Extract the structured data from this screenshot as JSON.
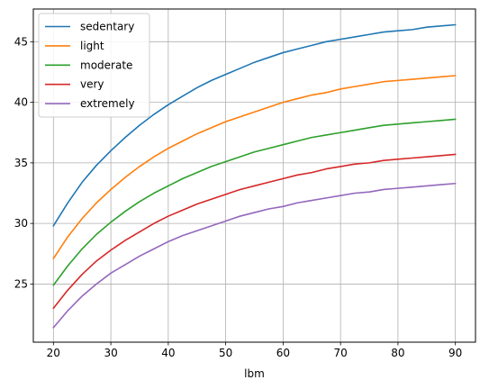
{
  "chart_data": {
    "type": "line",
    "title": "",
    "xlabel": "lbm",
    "ylabel": "",
    "xlim": [
      16.5,
      93.5
    ],
    "ylim": [
      20.2,
      47.7
    ],
    "x_ticks": [
      20,
      30,
      40,
      50,
      60,
      70,
      80,
      90
    ],
    "y_ticks": [
      25,
      30,
      35,
      40,
      45
    ],
    "grid": true,
    "legend_position": "upper-left",
    "x": [
      20,
      22.5,
      25,
      27.5,
      30,
      32.5,
      35,
      37.5,
      40,
      42.5,
      45,
      47.5,
      50,
      52.5,
      55,
      57.5,
      60,
      62.5,
      65,
      67.5,
      70,
      72.5,
      75,
      77.5,
      80,
      82.5,
      85,
      87.5,
      90
    ],
    "series": [
      {
        "name": "sedentary",
        "color": "#1f77b4",
        "values": [
          29.8,
          31.7,
          33.4,
          34.8,
          36.0,
          37.1,
          38.1,
          39.0,
          39.8,
          40.5,
          41.2,
          41.8,
          42.3,
          42.8,
          43.3,
          43.7,
          44.1,
          44.4,
          44.7,
          45.0,
          45.2,
          45.4,
          45.6,
          45.8,
          45.9,
          46.0,
          46.2,
          46.3,
          46.4
        ]
      },
      {
        "name": "light",
        "color": "#ff7f0e",
        "values": [
          27.1,
          28.9,
          30.4,
          31.7,
          32.8,
          33.8,
          34.7,
          35.5,
          36.2,
          36.8,
          37.4,
          37.9,
          38.4,
          38.8,
          39.2,
          39.6,
          40.0,
          40.3,
          40.6,
          40.8,
          41.1,
          41.3,
          41.5,
          41.7,
          41.8,
          41.9,
          42.0,
          42.1,
          42.2
        ]
      },
      {
        "name": "moderate",
        "color": "#2ca02c",
        "values": [
          24.9,
          26.5,
          27.9,
          29.1,
          30.1,
          31.0,
          31.8,
          32.5,
          33.1,
          33.7,
          34.2,
          34.7,
          35.1,
          35.5,
          35.9,
          36.2,
          36.5,
          36.8,
          37.1,
          37.3,
          37.5,
          37.7,
          37.9,
          38.1,
          38.2,
          38.3,
          38.4,
          38.5,
          38.6
        ]
      },
      {
        "name": "very",
        "color": "#d62728",
        "values": [
          23.0,
          24.5,
          25.8,
          26.9,
          27.8,
          28.6,
          29.3,
          30.0,
          30.6,
          31.1,
          31.6,
          32.0,
          32.4,
          32.8,
          33.1,
          33.4,
          33.7,
          34.0,
          34.2,
          34.5,
          34.7,
          34.9,
          35.0,
          35.2,
          35.3,
          35.4,
          35.5,
          35.6,
          35.7
        ]
      },
      {
        "name": "extremely",
        "color": "#9467bd",
        "values": [
          21.4,
          22.8,
          24.0,
          25.0,
          25.9,
          26.6,
          27.3,
          27.9,
          28.5,
          29.0,
          29.4,
          29.8,
          30.2,
          30.6,
          30.9,
          31.2,
          31.4,
          31.7,
          31.9,
          32.1,
          32.3,
          32.5,
          32.6,
          32.8,
          32.9,
          33.0,
          33.1,
          33.2,
          33.3
        ]
      }
    ]
  }
}
